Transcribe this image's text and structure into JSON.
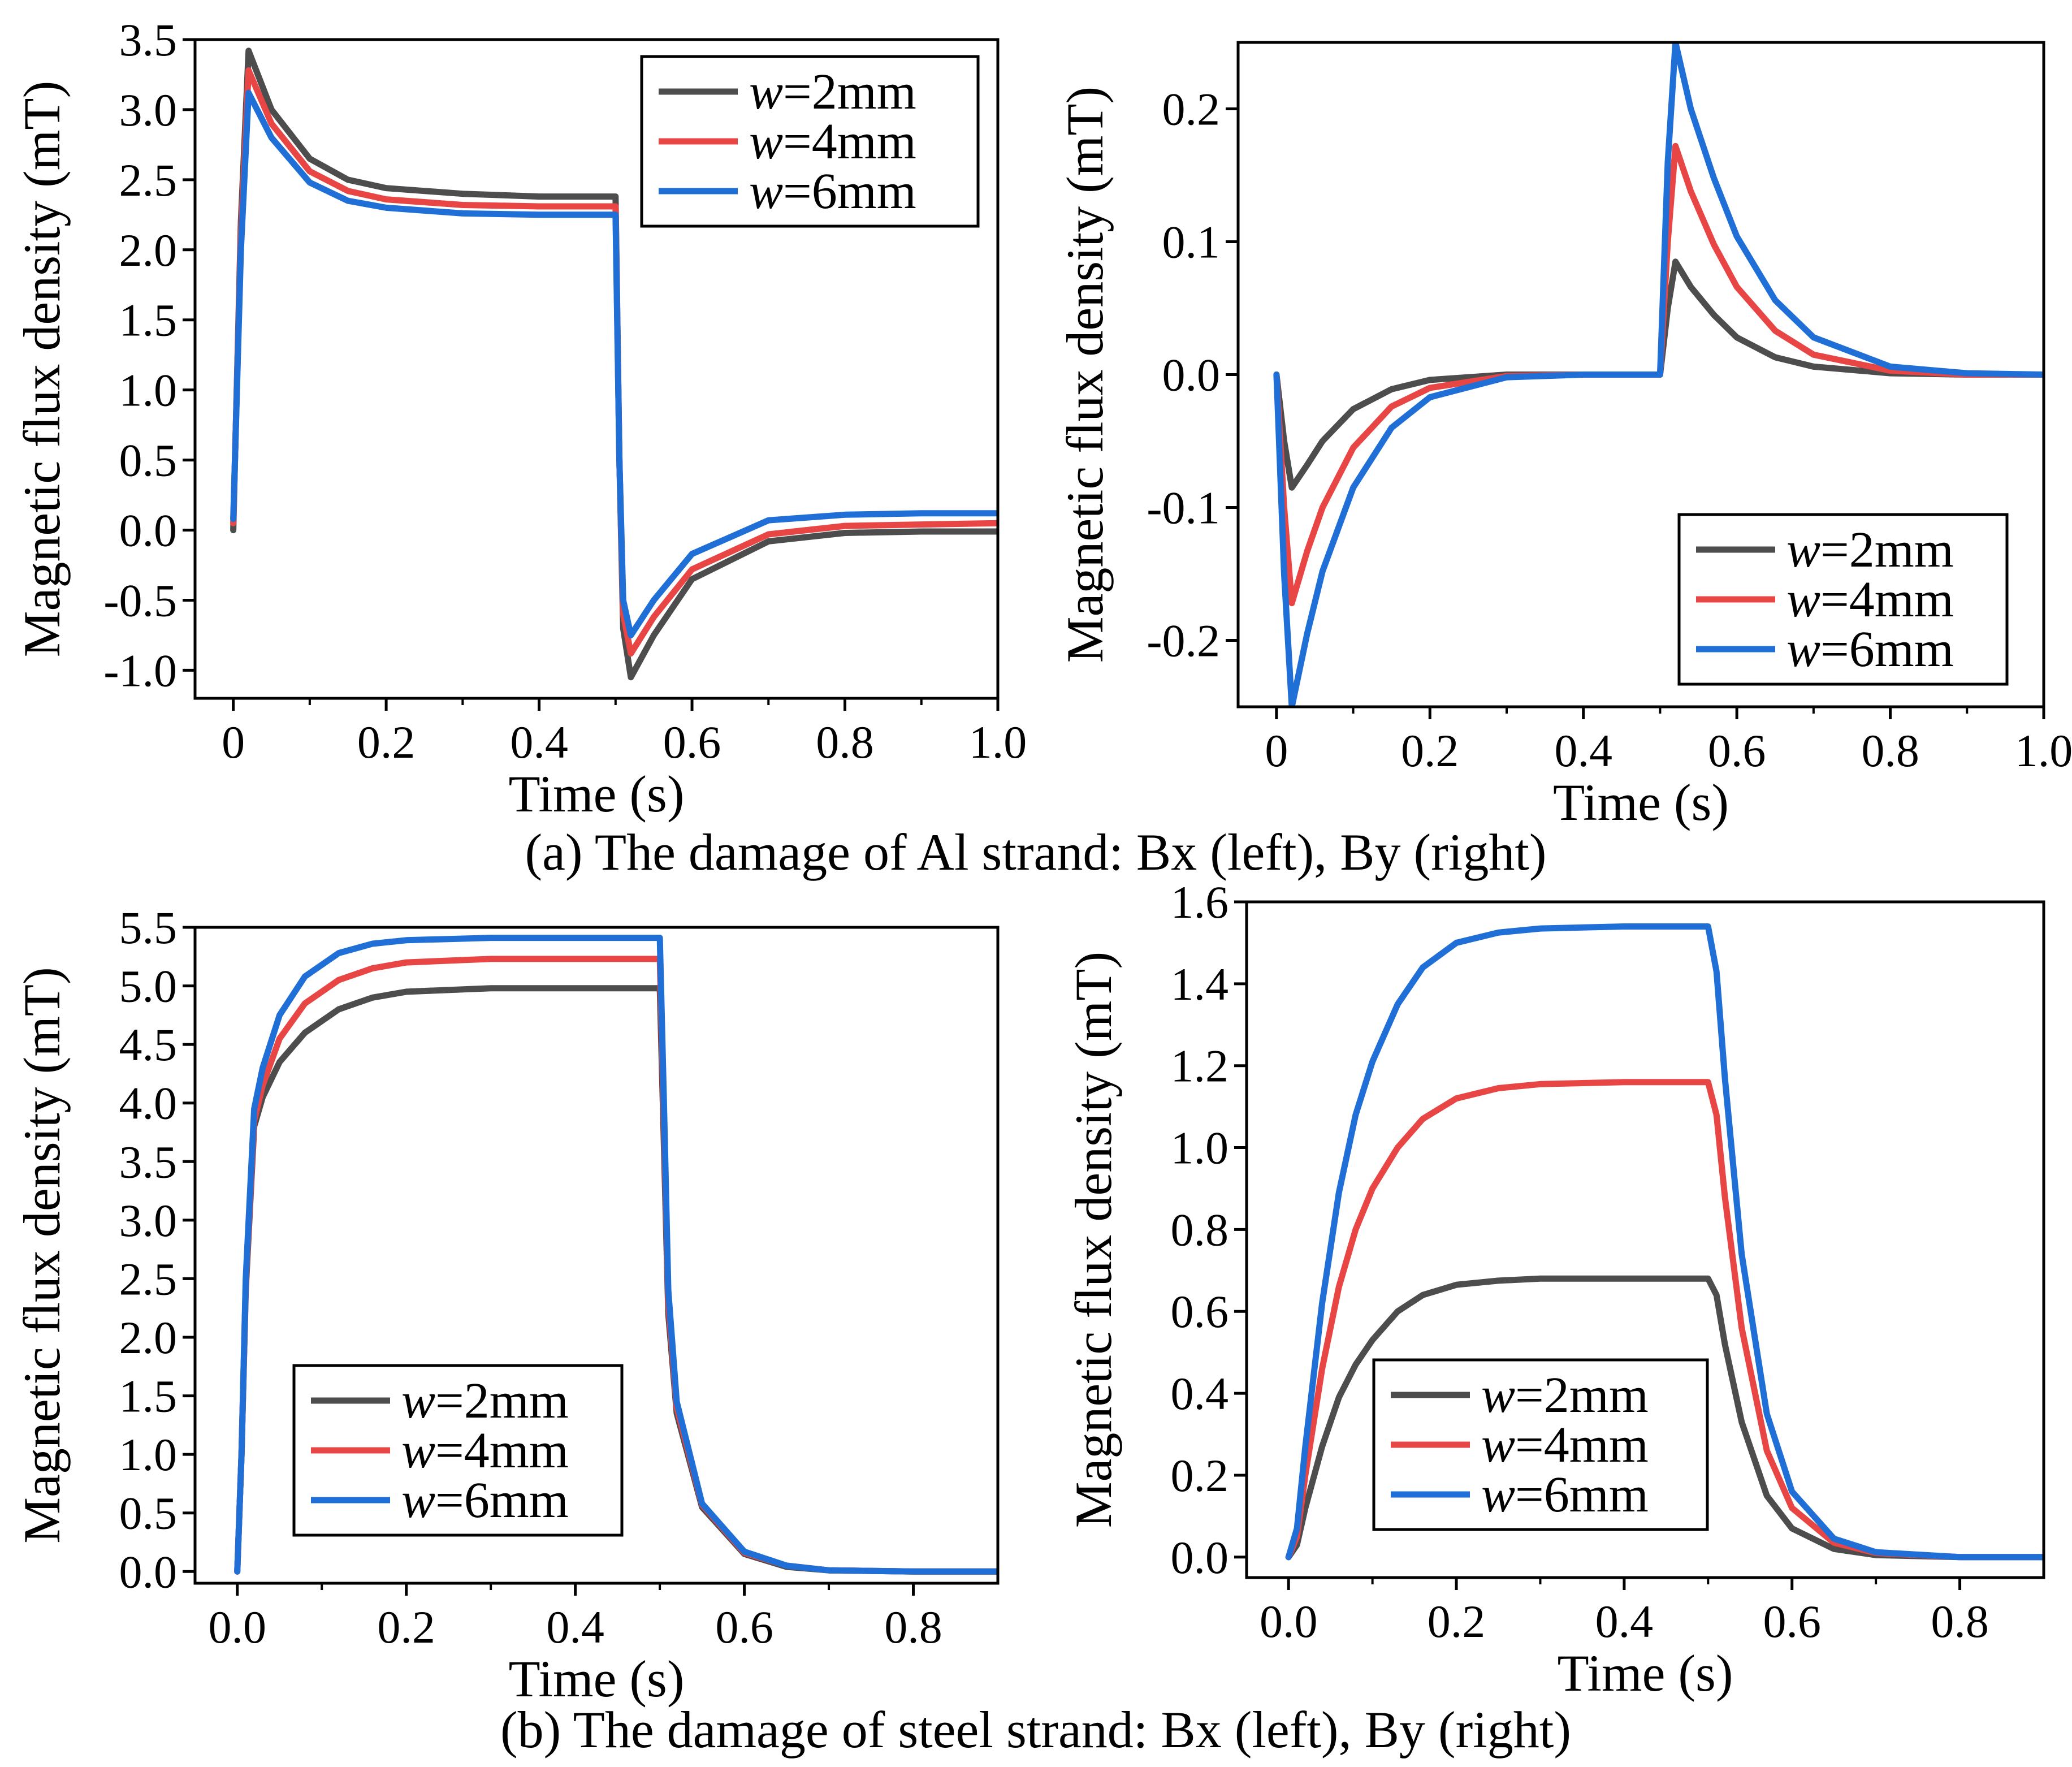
{
  "figure": {
    "captions": [
      "(a) The damage of Al strand: Bx (left), By (right)",
      "(b) The damage of steel strand: Bx (left), By (right)"
    ],
    "series_colors": {
      "w=2mm": "#4d4d4d",
      "w=4mm": "#e84545",
      "w=6mm": "#1f6fd6"
    }
  },
  "chart_data": [
    {
      "id": "a-left",
      "type": "line",
      "title": "",
      "xlabel": "Time (s)",
      "ylabel": "Magnetic flux density (mT)",
      "xlim": [
        -0.05,
        1.0
      ],
      "ylim": [
        -1.2,
        3.5
      ],
      "xticks": [
        "0",
        "0.2",
        "0.4",
        "0.6",
        "0.8",
        "1.0"
      ],
      "xtick_values": [
        0,
        0.2,
        0.4,
        0.6,
        0.8,
        1.0
      ],
      "yticks": [
        "-1.0",
        "-0.5",
        "0.0",
        "0.5",
        "1.0",
        "1.5",
        "2.0",
        "2.5",
        "3.0",
        "3.5"
      ],
      "ytick_values": [
        -1.0,
        -0.5,
        0.0,
        0.5,
        1.0,
        1.5,
        2.0,
        2.5,
        3.0,
        3.5
      ],
      "legend": {
        "position": "top-right"
      },
      "series": [
        {
          "name": "w=2mm",
          "color": "#4d4d4d",
          "x": [
            0,
            0.01,
            0.02,
            0.05,
            0.1,
            0.15,
            0.2,
            0.3,
            0.4,
            0.5,
            0.505,
            0.51,
            0.52,
            0.55,
            0.6,
            0.7,
            0.8,
            0.9,
            1.0
          ],
          "y": [
            0,
            2.2,
            3.42,
            3.0,
            2.65,
            2.5,
            2.44,
            2.4,
            2.38,
            2.38,
            0.5,
            -0.7,
            -1.05,
            -0.75,
            -0.35,
            -0.08,
            -0.02,
            -0.01,
            -0.01
          ]
        },
        {
          "name": "w=4mm",
          "color": "#e84545",
          "x": [
            0,
            0.01,
            0.02,
            0.05,
            0.1,
            0.15,
            0.2,
            0.3,
            0.4,
            0.5,
            0.505,
            0.51,
            0.52,
            0.55,
            0.6,
            0.7,
            0.8,
            0.9,
            1.0
          ],
          "y": [
            0.05,
            2.1,
            3.28,
            2.9,
            2.56,
            2.42,
            2.36,
            2.32,
            2.31,
            2.31,
            0.5,
            -0.6,
            -0.88,
            -0.62,
            -0.28,
            -0.03,
            0.03,
            0.04,
            0.05
          ]
        },
        {
          "name": "w=6mm",
          "color": "#1f6fd6",
          "x": [
            0,
            0.01,
            0.02,
            0.05,
            0.1,
            0.15,
            0.2,
            0.3,
            0.4,
            0.5,
            0.505,
            0.51,
            0.52,
            0.55,
            0.6,
            0.7,
            0.8,
            0.9,
            1.0
          ],
          "y": [
            0.08,
            2.0,
            3.12,
            2.8,
            2.48,
            2.35,
            2.3,
            2.26,
            2.25,
            2.25,
            0.5,
            -0.5,
            -0.75,
            -0.5,
            -0.17,
            0.07,
            0.11,
            0.12,
            0.12
          ]
        }
      ]
    },
    {
      "id": "a-right",
      "type": "line",
      "title": "",
      "xlabel": "Time (s)",
      "ylabel": "Magnetic flux density (mT)",
      "xlim": [
        -0.05,
        1.0
      ],
      "ylim": [
        -0.25,
        0.25
      ],
      "xticks": [
        "0",
        "0.2",
        "0.4",
        "0.6",
        "0.8",
        "1.0"
      ],
      "xtick_values": [
        0,
        0.2,
        0.4,
        0.6,
        0.8,
        1.0
      ],
      "yticks": [
        "-0.2",
        "-0.1",
        "0.0",
        "0.1",
        "0.2"
      ],
      "ytick_values": [
        -0.2,
        -0.1,
        0.0,
        0.1,
        0.2
      ],
      "legend": {
        "position": "bottom-right"
      },
      "series": [
        {
          "name": "w=2mm",
          "color": "#4d4d4d",
          "x": [
            0,
            0.01,
            0.02,
            0.04,
            0.06,
            0.1,
            0.15,
            0.2,
            0.3,
            0.4,
            0.5,
            0.51,
            0.52,
            0.54,
            0.57,
            0.6,
            0.65,
            0.7,
            0.8,
            0.9,
            1.0
          ],
          "y": [
            0,
            -0.05,
            -0.085,
            -0.068,
            -0.05,
            -0.026,
            -0.011,
            -0.004,
            0,
            0,
            0,
            0.05,
            0.085,
            0.066,
            0.045,
            0.028,
            0.013,
            0.006,
            0.001,
            0,
            0
          ]
        },
        {
          "name": "w=4mm",
          "color": "#e84545",
          "x": [
            0,
            0.01,
            0.02,
            0.04,
            0.06,
            0.1,
            0.15,
            0.2,
            0.3,
            0.4,
            0.5,
            0.51,
            0.52,
            0.54,
            0.57,
            0.6,
            0.65,
            0.7,
            0.8,
            0.9,
            1.0
          ],
          "y": [
            0,
            -0.1,
            -0.172,
            -0.133,
            -0.1,
            -0.055,
            -0.024,
            -0.01,
            -0.001,
            0,
            0,
            0.1,
            0.172,
            0.138,
            0.098,
            0.066,
            0.033,
            0.015,
            0.003,
            0,
            0
          ]
        },
        {
          "name": "w=6mm",
          "color": "#1f6fd6",
          "x": [
            0,
            0.01,
            0.02,
            0.04,
            0.06,
            0.1,
            0.15,
            0.2,
            0.3,
            0.4,
            0.5,
            0.51,
            0.52,
            0.54,
            0.57,
            0.6,
            0.65,
            0.7,
            0.8,
            0.9,
            1.0
          ],
          "y": [
            0,
            -0.15,
            -0.25,
            -0.195,
            -0.148,
            -0.085,
            -0.04,
            -0.017,
            -0.002,
            0,
            0,
            0.16,
            0.25,
            0.2,
            0.148,
            0.104,
            0.056,
            0.028,
            0.006,
            0.001,
            0
          ]
        }
      ]
    },
    {
      "id": "b-left",
      "type": "line",
      "title": "",
      "xlabel": "Time (s)",
      "ylabel": "Magnetic flux density (mT)",
      "xlim": [
        -0.05,
        0.9
      ],
      "ylim": [
        -0.1,
        5.5
      ],
      "xticks": [
        "0.0",
        "0.2",
        "0.4",
        "0.6",
        "0.8"
      ],
      "xtick_values": [
        0,
        0.2,
        0.4,
        0.6,
        0.8
      ],
      "yticks": [
        "0.0",
        "0.5",
        "1.0",
        "1.5",
        "2.0",
        "2.5",
        "3.0",
        "3.5",
        "4.0",
        "4.5",
        "5.0",
        "5.5"
      ],
      "ytick_values": [
        0,
        0.5,
        1.0,
        1.5,
        2.0,
        2.5,
        3.0,
        3.5,
        4.0,
        4.5,
        5.0,
        5.5
      ],
      "legend": {
        "position": "bottom-left"
      },
      "series": [
        {
          "name": "w=2mm",
          "color": "#4d4d4d",
          "x": [
            0,
            0.005,
            0.01,
            0.02,
            0.03,
            0.05,
            0.08,
            0.12,
            0.16,
            0.2,
            0.3,
            0.4,
            0.5,
            0.505,
            0.51,
            0.52,
            0.55,
            0.6,
            0.65,
            0.7,
            0.8,
            0.9
          ],
          "y": [
            0,
            1.0,
            2.4,
            3.8,
            4.05,
            4.35,
            4.6,
            4.8,
            4.9,
            4.95,
            4.98,
            4.98,
            4.98,
            3.6,
            2.2,
            1.35,
            0.55,
            0.15,
            0.04,
            0.01,
            0,
            0
          ]
        },
        {
          "name": "w=4mm",
          "color": "#e84545",
          "x": [
            0,
            0.005,
            0.01,
            0.02,
            0.03,
            0.05,
            0.08,
            0.12,
            0.16,
            0.2,
            0.3,
            0.4,
            0.5,
            0.505,
            0.51,
            0.52,
            0.55,
            0.6,
            0.65,
            0.7,
            0.8,
            0.9
          ],
          "y": [
            0,
            1.0,
            2.45,
            3.85,
            4.15,
            4.55,
            4.85,
            5.05,
            5.15,
            5.2,
            5.23,
            5.23,
            5.23,
            3.8,
            2.3,
            1.4,
            0.57,
            0.16,
            0.05,
            0.01,
            0,
            0
          ]
        },
        {
          "name": "w=6mm",
          "color": "#1f6fd6",
          "x": [
            0,
            0.005,
            0.01,
            0.02,
            0.03,
            0.05,
            0.08,
            0.12,
            0.16,
            0.2,
            0.3,
            0.4,
            0.5,
            0.505,
            0.51,
            0.52,
            0.55,
            0.6,
            0.65,
            0.7,
            0.8,
            0.9
          ],
          "y": [
            0,
            1.0,
            2.5,
            3.95,
            4.3,
            4.75,
            5.08,
            5.28,
            5.36,
            5.39,
            5.41,
            5.41,
            5.41,
            3.95,
            2.4,
            1.45,
            0.58,
            0.17,
            0.05,
            0.01,
            0,
            0
          ]
        }
      ]
    },
    {
      "id": "b-right",
      "type": "line",
      "title": "",
      "xlabel": "Time (s)",
      "ylabel": "Magnetic flux density (mT)",
      "xlim": [
        -0.05,
        0.9
      ],
      "ylim": [
        -0.05,
        1.6
      ],
      "xticks": [
        "0.0",
        "0.2",
        "0.4",
        "0.6",
        "0.8"
      ],
      "xtick_values": [
        0,
        0.2,
        0.4,
        0.6,
        0.8
      ],
      "yticks": [
        "0.0",
        "0.2",
        "0.4",
        "0.6",
        "0.8",
        "1.0",
        "1.2",
        "1.4",
        "1.6"
      ],
      "ytick_values": [
        0,
        0.2,
        0.4,
        0.6,
        0.8,
        1.0,
        1.2,
        1.4,
        1.6
      ],
      "legend": {
        "position": "bottom-right"
      },
      "series": [
        {
          "name": "w=2mm",
          "color": "#4d4d4d",
          "x": [
            0,
            0.01,
            0.02,
            0.04,
            0.06,
            0.08,
            0.1,
            0.13,
            0.16,
            0.2,
            0.25,
            0.3,
            0.4,
            0.5,
            0.51,
            0.52,
            0.54,
            0.57,
            0.6,
            0.65,
            0.7,
            0.8,
            0.9
          ],
          "y": [
            0,
            0.03,
            0.12,
            0.27,
            0.39,
            0.47,
            0.53,
            0.6,
            0.64,
            0.665,
            0.675,
            0.68,
            0.68,
            0.68,
            0.64,
            0.52,
            0.33,
            0.15,
            0.07,
            0.02,
            0.005,
            0,
            0
          ]
        },
        {
          "name": "w=4mm",
          "color": "#e84545",
          "x": [
            0,
            0.01,
            0.02,
            0.04,
            0.06,
            0.08,
            0.1,
            0.13,
            0.16,
            0.2,
            0.25,
            0.3,
            0.4,
            0.5,
            0.51,
            0.52,
            0.54,
            0.57,
            0.6,
            0.65,
            0.7,
            0.8,
            0.9
          ],
          "y": [
            0,
            0.05,
            0.2,
            0.46,
            0.66,
            0.8,
            0.9,
            1.0,
            1.07,
            1.12,
            1.145,
            1.155,
            1.16,
            1.16,
            1.08,
            0.88,
            0.56,
            0.26,
            0.12,
            0.035,
            0.01,
            0,
            0
          ]
        },
        {
          "name": "w=6mm",
          "color": "#1f6fd6",
          "x": [
            0,
            0.01,
            0.02,
            0.04,
            0.06,
            0.08,
            0.1,
            0.13,
            0.16,
            0.2,
            0.25,
            0.3,
            0.4,
            0.5,
            0.51,
            0.52,
            0.54,
            0.57,
            0.6,
            0.65,
            0.7,
            0.8,
            0.9
          ],
          "y": [
            0,
            0.07,
            0.27,
            0.62,
            0.89,
            1.08,
            1.21,
            1.35,
            1.44,
            1.5,
            1.525,
            1.535,
            1.54,
            1.54,
            1.43,
            1.17,
            0.74,
            0.35,
            0.16,
            0.045,
            0.012,
            0,
            0
          ]
        }
      ]
    }
  ]
}
